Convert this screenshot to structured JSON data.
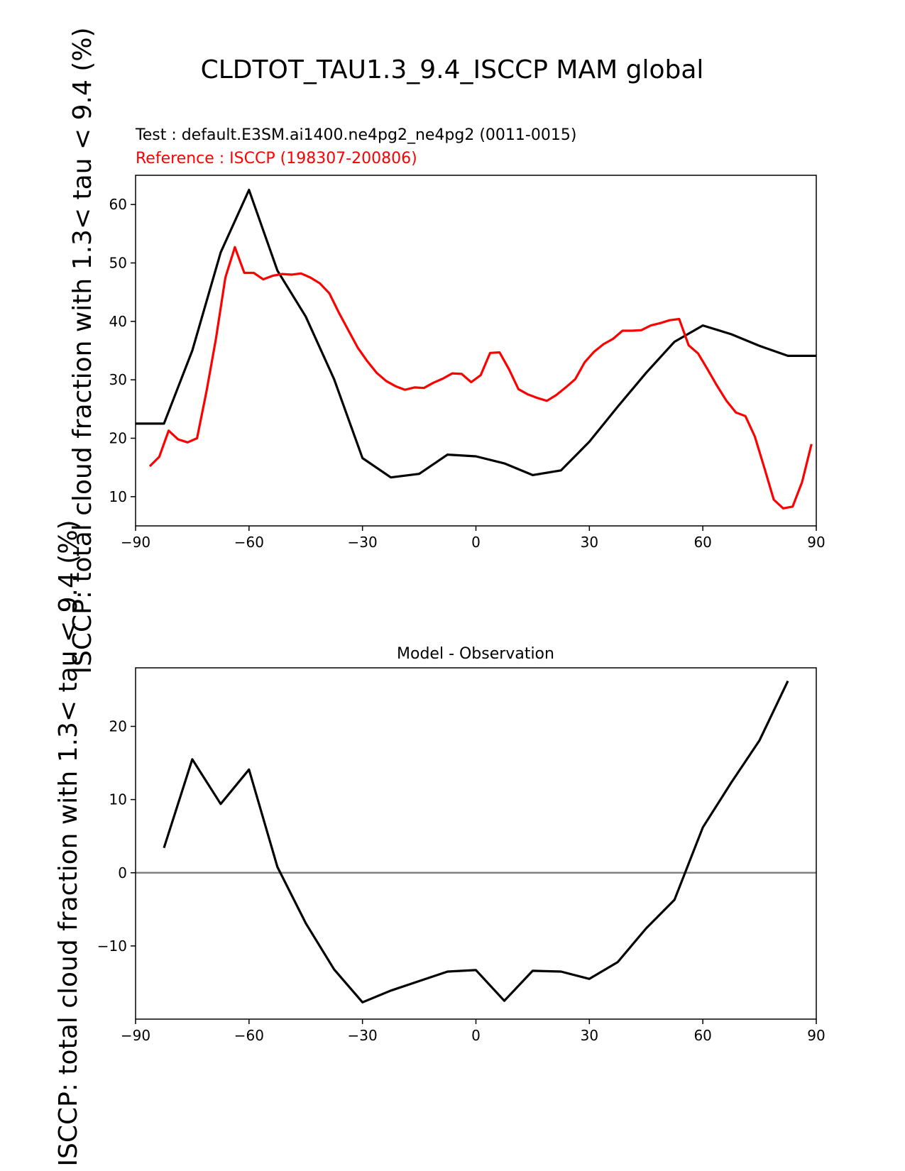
{
  "figure": {
    "title": "CLDTOT_TAU1.3_9.4_ISCCP MAM global"
  },
  "colors": {
    "test": "#000000",
    "reference": "#ff0000",
    "zero_line": "#808080"
  },
  "chart_data": [
    {
      "type": "line",
      "test_label": "Test : default.E3SM.ai1400.ne4pg2_ne4pg2 (0011-0015)",
      "reference_label": "Reference : ISCCP (198307-200806)",
      "ylabel": "ISCCP: total cloud fraction with 1.3< tau < 9.4 (%)",
      "xlim": [
        -90,
        90
      ],
      "ylim": [
        5,
        65
      ],
      "xticks": [
        -90,
        -60,
        -30,
        0,
        30,
        60,
        90
      ],
      "yticks": [
        10,
        20,
        30,
        40,
        50,
        60
      ],
      "grid": false,
      "series": [
        {
          "role": "test",
          "x": [
            -90,
            -82.5,
            -75,
            -67.5,
            -60,
            -52.5,
            -45,
            -37.5,
            -30,
            -22.5,
            -15,
            -7.5,
            0,
            7.5,
            15,
            22.5,
            30,
            37.5,
            45,
            52.5,
            60,
            67.5,
            75,
            82.5,
            90
          ],
          "y": [
            22.5,
            22.5,
            35,
            51.8,
            62.5,
            48.7,
            40.8,
            30.1,
            16.6,
            13.3,
            13.9,
            17.2,
            16.9,
            15.7,
            13.7,
            14.5,
            19.4,
            25.4,
            31.2,
            36.5,
            39.3,
            37.8,
            35.8,
            34.1,
            34.1
          ]
        },
        {
          "role": "reference",
          "x": [
            -86.25,
            -83.75,
            -81.25,
            -78.75,
            -76.25,
            -73.75,
            -71.25,
            -68.75,
            -66.25,
            -63.75,
            -61.25,
            -58.75,
            -56.25,
            -53.75,
            -51.25,
            -48.75,
            -46.25,
            -43.75,
            -41.25,
            -38.75,
            -36.25,
            -33.75,
            -31.25,
            -28.75,
            -26.25,
            -23.75,
            -21.25,
            -18.75,
            -16.25,
            -13.75,
            -11.25,
            -8.75,
            -6.25,
            -3.75,
            -1.25,
            1.25,
            3.75,
            6.25,
            8.75,
            11.25,
            13.75,
            16.25,
            18.75,
            21.25,
            23.75,
            26.25,
            28.75,
            31.25,
            33.75,
            36.25,
            38.75,
            41.25,
            43.75,
            46.25,
            48.75,
            51.25,
            53.75,
            56.25,
            58.75,
            61.25,
            63.75,
            66.25,
            68.75,
            71.25,
            73.75,
            76.25,
            78.75,
            81.25,
            83.75,
            86.25,
            88.75
          ],
          "y": [
            15.2,
            16.8,
            21.3,
            19.8,
            19.3,
            20.0,
            28.0,
            37.0,
            47.5,
            52.7,
            48.3,
            48.3,
            47.2,
            47.8,
            48.1,
            48.0,
            48.2,
            47.5,
            46.5,
            44.8,
            41.5,
            38.5,
            35.5,
            33.2,
            31.2,
            29.8,
            28.9,
            28.3,
            28.7,
            28.6,
            29.5,
            30.2,
            31.1,
            31.0,
            29.6,
            30.8,
            34.6,
            34.7,
            31.8,
            28.4,
            27.5,
            26.9,
            26.4,
            27.4,
            28.7,
            30.1,
            33.0,
            34.8,
            36.1,
            37.0,
            38.4,
            38.4,
            38.5,
            39.3,
            39.7,
            40.2,
            40.4,
            35.9,
            34.5,
            31.8,
            29.0,
            26.4,
            24.4,
            23.8,
            20.3,
            15.0,
            9.5,
            8.0,
            8.3,
            12.5,
            19.0
          ]
        }
      ]
    },
    {
      "type": "line",
      "title": "Model - Observation",
      "ylabel": "ISCCP: total cloud fraction with 1.3< tau < 9.4 (%)",
      "xlim": [
        -90,
        90
      ],
      "ylim": [
        -20,
        28
      ],
      "xticks": [
        -90,
        -60,
        -30,
        0,
        30,
        60,
        90
      ],
      "yticks": [
        -10,
        0,
        10,
        20
      ],
      "zero_line": 0,
      "grid": false,
      "series": [
        {
          "role": "difference",
          "x": [
            -82.5,
            -75,
            -67.5,
            -60,
            -52.5,
            -45,
            -37.5,
            -30,
            -22.5,
            -15,
            -7.5,
            0,
            7.5,
            15,
            22.5,
            30,
            37.5,
            45,
            52.5,
            60,
            67.5,
            75,
            82.5
          ],
          "y": [
            3.4,
            15.5,
            9.4,
            14.1,
            0.8,
            -6.9,
            -13.2,
            -17.7,
            -16.1,
            -14.8,
            -13.5,
            -13.3,
            -17.5,
            -13.4,
            -13.5,
            -14.5,
            -12.2,
            -7.6,
            -3.7,
            6.2,
            12.3,
            18.1,
            26.2
          ]
        }
      ]
    }
  ]
}
